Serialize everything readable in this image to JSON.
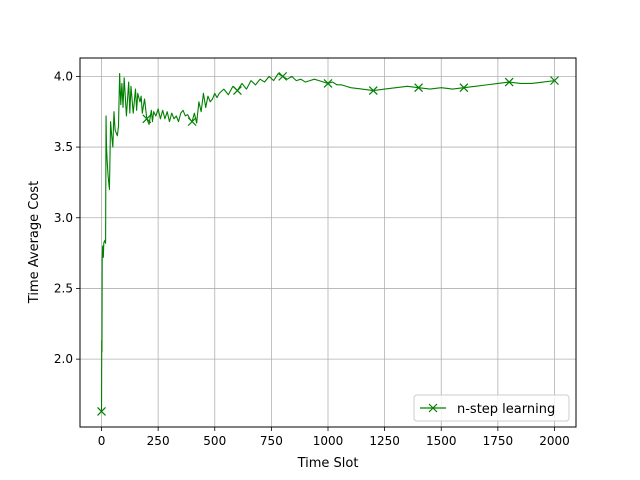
{
  "chart_data": {
    "type": "line",
    "title": "",
    "xlabel": "Time Slot",
    "ylabel": "Time Average Cost",
    "xlim": [
      -95,
      2095
    ],
    "ylim": [
      1.52,
      4.13
    ],
    "xticks": [
      0,
      250,
      500,
      750,
      1000,
      1250,
      1500,
      1750,
      2000
    ],
    "xtick_labels": [
      "0",
      "250",
      "500",
      "750",
      "1000",
      "1250",
      "1500",
      "1750",
      "2000"
    ],
    "yticks": [
      2.0,
      2.5,
      3.0,
      3.5,
      4.0
    ],
    "ytick_labels": [
      "2.0",
      "2.5",
      "3.0",
      "3.5",
      "4.0"
    ],
    "grid": true,
    "legend_position": "lower-right",
    "series": [
      {
        "name": "n-step learning",
        "color": "#008000",
        "marker": "x",
        "marker_x": [
          0,
          200,
          400,
          600,
          800,
          1000,
          1200,
          1400,
          1600,
          1800,
          2000
        ],
        "x": [
          0,
          1,
          2,
          3,
          5,
          8,
          10,
          12,
          15,
          18,
          20,
          22,
          25,
          28,
          30,
          35,
          40,
          45,
          50,
          55,
          60,
          65,
          70,
          75,
          80,
          85,
          90,
          95,
          100,
          110,
          120,
          125,
          130,
          140,
          150,
          155,
          160,
          170,
          175,
          180,
          190,
          200,
          210,
          220,
          225,
          230,
          240,
          250,
          260,
          270,
          280,
          290,
          300,
          310,
          320,
          330,
          340,
          350,
          360,
          370,
          380,
          390,
          400,
          410,
          420,
          430,
          440,
          450,
          460,
          470,
          480,
          490,
          500,
          510,
          520,
          540,
          560,
          580,
          600,
          620,
          640,
          660,
          680,
          700,
          720,
          740,
          760,
          780,
          800,
          820,
          840,
          860,
          880,
          900,
          920,
          940,
          960,
          980,
          1000,
          1020,
          1040,
          1060,
          1080,
          1100,
          1150,
          1200,
          1250,
          1300,
          1350,
          1400,
          1450,
          1500,
          1550,
          1600,
          1650,
          1700,
          1750,
          1800,
          1850,
          1900,
          1950,
          2000
        ],
        "y": [
          1.63,
          2.13,
          2.05,
          2.7,
          2.8,
          2.72,
          2.82,
          2.83,
          2.84,
          2.82,
          3.72,
          3.5,
          3.4,
          3.32,
          3.28,
          3.2,
          3.68,
          3.58,
          3.5,
          3.75,
          3.62,
          3.6,
          3.58,
          3.65,
          4.02,
          3.8,
          3.95,
          3.78,
          3.99,
          3.72,
          3.96,
          3.74,
          3.93,
          3.74,
          3.91,
          3.76,
          3.88,
          3.82,
          3.86,
          3.74,
          3.84,
          3.7,
          3.66,
          3.76,
          3.68,
          3.75,
          3.72,
          3.77,
          3.7,
          3.76,
          3.7,
          3.75,
          3.68,
          3.74,
          3.7,
          3.72,
          3.68,
          3.74,
          3.76,
          3.72,
          3.73,
          3.7,
          3.68,
          3.74,
          3.67,
          3.82,
          3.75,
          3.88,
          3.78,
          3.86,
          3.82,
          3.84,
          3.88,
          3.85,
          3.88,
          3.91,
          3.87,
          3.93,
          3.9,
          3.95,
          3.91,
          3.97,
          3.94,
          3.98,
          3.96,
          4.0,
          3.97,
          4.02,
          4.0,
          3.98,
          4.0,
          3.97,
          3.98,
          3.96,
          3.97,
          3.98,
          3.97,
          3.96,
          3.95,
          3.96,
          3.94,
          3.94,
          3.93,
          3.92,
          3.91,
          3.9,
          3.91,
          3.92,
          3.93,
          3.92,
          3.91,
          3.92,
          3.91,
          3.92,
          3.93,
          3.94,
          3.95,
          3.96,
          3.95,
          3.95,
          3.96,
          3.97
        ]
      }
    ]
  }
}
